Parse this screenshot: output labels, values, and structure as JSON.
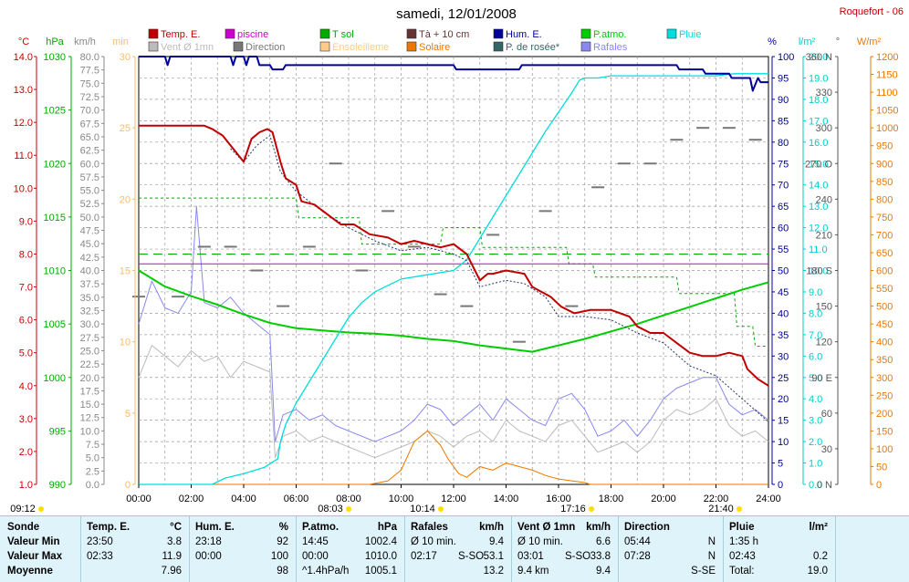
{
  "title": "samedi, 12/01/2008",
  "station": "Roquefort - 06",
  "colors": {
    "temp": "#c00000",
    "piscine": "#cc00cc",
    "tsol": "#00aa00",
    "t10": "#663333",
    "hum": "#000099",
    "patmo": "#00cc00",
    "pluie": "#00dddd",
    "vent": "#bbbbbb",
    "direction": "#777777",
    "ensoleillement": "#ffcc88",
    "solaire": "#ee7700",
    "rosee": "#336666",
    "rafales": "#8888ee",
    "grid": "#999999"
  },
  "legend": [
    {
      "label": "Temp. E.",
      "color": "#c00000"
    },
    {
      "label": "piscine",
      "color": "#cc00cc"
    },
    {
      "label": "T sol",
      "color": "#00aa00"
    },
    {
      "label": "Tà + 10 cm",
      "color": "#663333"
    },
    {
      "label": "Hum. E.",
      "color": "#000099"
    },
    {
      "label": "P.atmo.",
      "color": "#00cc00"
    },
    {
      "label": "Pluie",
      "color": "#00dddd"
    },
    {
      "label": "Vent Ø 1mn",
      "color": "#bbbbbb"
    },
    {
      "label": "Direction",
      "color": "#777777"
    },
    {
      "label": "Ensoleilleme",
      "color": "#ffcc88"
    },
    {
      "label": "Solaire",
      "color": "#ee7700"
    },
    {
      "label": "P. de rosée*",
      "color": "#336666"
    },
    {
      "label": "Rafales",
      "color": "#8888ee"
    }
  ],
  "axis_units": {
    "temp": "°C",
    "press": "hPa",
    "wind": "km/h",
    "min": "min",
    "pct": "%",
    "rain": "l/m²",
    "dir": "°",
    "solar": "W/m²"
  },
  "chart_data": {
    "type": "line",
    "title": "samedi, 12/01/2008",
    "x_range": [
      "00:00",
      "24:00"
    ],
    "x_ticks": [
      "00:00",
      "02:00",
      "04:00",
      "06:00",
      "08:00",
      "10:00",
      "12:00",
      "14:00",
      "16:00",
      "18:00",
      "20:00",
      "22:00",
      "24:00"
    ],
    "axes": {
      "temp_c": {
        "range": [
          1.0,
          14.0
        ],
        "ticks": [
          "1.0",
          "2.0",
          "3.0",
          "4.0",
          "5.0",
          "6.0",
          "7.0",
          "8.0",
          "9.0",
          "10.0",
          "11.0",
          "12.0",
          "13.0",
          "14.0"
        ]
      },
      "press_hpa": {
        "range": [
          990,
          1030
        ],
        "ticks": [
          "990",
          "995",
          "1000",
          "1005",
          "1010",
          "1015",
          "1020",
          "1025",
          "1030"
        ]
      },
      "wind_kmh": {
        "range": [
          0,
          80
        ],
        "ticks": [
          "0.0",
          "2.5",
          "5.0",
          "7.5",
          "10.0",
          "12.5",
          "15.0",
          "17.5",
          "20.0",
          "22.5",
          "25.0",
          "27.5",
          "30.0",
          "32.5",
          "35.0",
          "37.5",
          "40.0",
          "42.5",
          "45.0",
          "47.5",
          "50.0",
          "52.5",
          "55.0",
          "57.5",
          "60.0",
          "62.5",
          "65.0",
          "67.5",
          "70.0",
          "72.5",
          "75.0",
          "77.5",
          "80.0"
        ]
      },
      "sun_min": {
        "range": [
          0,
          30
        ],
        "ticks": [
          "0",
          "5",
          "10",
          "15",
          "20",
          "25",
          "30"
        ]
      },
      "hum_pct": {
        "range": [
          0,
          100
        ],
        "ticks": [
          "0",
          "5",
          "10",
          "15",
          "20",
          "25",
          "30",
          "35",
          "40",
          "45",
          "50",
          "55",
          "60",
          "65",
          "70",
          "75",
          "80",
          "85",
          "90",
          "95",
          "100"
        ]
      },
      "rain_lm2": {
        "range": [
          0,
          20
        ],
        "ticks": [
          "0.0",
          "1.0",
          "2.0",
          "3.0",
          "4.0",
          "5.0",
          "6.0",
          "7.0",
          "8.0",
          "9.0",
          "10.0",
          "11.0",
          "12.0",
          "13.0",
          "14.0",
          "15.0",
          "16.0",
          "17.0",
          "18.0",
          "19.0",
          "20.0"
        ]
      },
      "dir_deg": {
        "range": [
          0,
          360
        ],
        "ticks": [
          "0 N",
          "30",
          "60",
          "90 E",
          "120",
          "150",
          "180 S",
          "210",
          "240",
          "270 O",
          "300",
          "330",
          "360 N"
        ]
      },
      "solar_wm2": {
        "range": [
          0,
          1200
        ],
        "ticks": [
          "0",
          "50",
          "100",
          "150",
          "200",
          "250",
          "300",
          "350",
          "400",
          "450",
          "500",
          "550",
          "600",
          "650",
          "700",
          "750",
          "800",
          "850",
          "900",
          "950",
          "1000",
          "1050",
          "1100",
          "1150",
          "1200"
        ]
      }
    },
    "series": [
      {
        "name": "Temp. E.",
        "axis": "temp_c",
        "x": [
          0,
          1.5,
          2.5,
          2.8,
          3.2,
          3.7,
          4.0,
          4.3,
          4.6,
          4.9,
          5.1,
          5.4,
          5.6,
          6.0,
          6.2,
          6.7,
          7.2,
          7.7,
          8.2,
          8.8,
          9.5,
          10.0,
          10.5,
          11.0,
          11.5,
          12.0,
          12.5,
          13.0,
          13.3,
          13.5,
          14.0,
          14.7,
          15.0,
          15.7,
          16.1,
          16.6,
          17.2,
          18.0,
          18.7,
          19.0,
          19.5,
          20.0,
          20.5,
          21.0,
          21.5,
          22.0,
          22.5,
          23.0,
          23.2,
          23.6,
          24.0
        ],
        "y": [
          11.9,
          11.9,
          11.9,
          11.8,
          11.6,
          11.1,
          10.8,
          11.5,
          11.7,
          11.8,
          11.7,
          10.8,
          10.3,
          10.1,
          9.6,
          9.5,
          9.2,
          8.9,
          8.9,
          8.6,
          8.5,
          8.3,
          8.4,
          8.3,
          8.2,
          8.3,
          8.0,
          7.2,
          7.4,
          7.4,
          7.5,
          7.4,
          7.0,
          6.7,
          6.4,
          6.2,
          6.3,
          6.3,
          6.1,
          5.8,
          5.6,
          5.6,
          5.3,
          5.0,
          4.9,
          4.9,
          5.0,
          4.9,
          4.5,
          4.2,
          4.0
        ]
      },
      {
        "name": "P. de rosée*",
        "axis": "temp_c",
        "x": [
          3.5,
          4.0,
          4.5,
          5.0,
          5.4,
          6.0,
          7.0,
          8.0,
          9.0,
          10.0,
          11.0,
          12.0,
          12.5,
          13.0,
          14.0,
          14.7,
          15.5,
          16.0,
          17.0,
          18.0,
          19.0,
          20.0,
          21.0,
          22.0,
          23.0,
          24.0
        ],
        "y": [
          11.2,
          10.8,
          11.3,
          11.6,
          10.5,
          9.9,
          9.3,
          8.8,
          8.4,
          8.1,
          8.2,
          8.0,
          7.8,
          7.0,
          7.2,
          7.1,
          6.7,
          6.1,
          6.1,
          6.0,
          5.6,
          5.3,
          4.6,
          4.3,
          3.6,
          2.9
        ]
      },
      {
        "name": "piscine",
        "axis": "temp_c",
        "x": [
          0,
          24
        ],
        "y": [
          7.7,
          7.7
        ]
      },
      {
        "name": "T sol",
        "axis": "temp_c",
        "x": [
          0,
          6.0,
          6.1,
          8.4,
          8.5,
          11.5,
          11.6,
          13.0,
          13.1,
          16.3,
          16.4,
          17.3,
          17.4,
          20.5,
          20.6,
          22.7,
          22.8,
          23.4,
          23.5,
          24.0
        ],
        "y": [
          9.7,
          9.7,
          9.1,
          9.1,
          8.3,
          8.3,
          8.8,
          8.8,
          8.2,
          8.2,
          7.7,
          7.7,
          7.3,
          7.3,
          6.8,
          6.8,
          5.8,
          5.8,
          5.2,
          5.2
        ]
      },
      {
        "name": "Tà + 10 cm",
        "axis": "temp_c",
        "x": [
          0,
          24
        ],
        "y": [
          8.0,
          8.0
        ]
      },
      {
        "name": "P.atmo.",
        "axis": "press_hpa",
        "x": [
          0,
          1,
          2,
          3,
          4,
          5,
          6,
          7,
          8,
          9,
          10,
          11,
          12,
          13,
          14,
          15,
          16,
          17,
          18,
          19,
          20,
          21,
          22,
          23,
          24
        ],
        "y": [
          1010.0,
          1008.5,
          1007.6,
          1006.8,
          1005.9,
          1005.1,
          1004.6,
          1004.4,
          1004.2,
          1004.1,
          1003.9,
          1003.6,
          1003.4,
          1003.0,
          1002.7,
          1002.4,
          1003.0,
          1003.6,
          1004.3,
          1005.0,
          1005.8,
          1006.6,
          1007.4,
          1008.2,
          1008.9
        ]
      },
      {
        "name": "Hum. E.",
        "axis": "hum_pct",
        "x": [
          0,
          1.0,
          1.1,
          1.2,
          3.5,
          3.6,
          3.7,
          4.0,
          4.1,
          4.2,
          4.5,
          4.6,
          5.0,
          5.1,
          5.5,
          5.6,
          6.0,
          12.0,
          12.1,
          14.5,
          14.6,
          16.0,
          20.5,
          20.6,
          21.5,
          21.6,
          22.5,
          22.6,
          23.3,
          23.4,
          23.6,
          23.7,
          24.0
        ],
        "y": [
          100,
          100,
          98,
          100,
          100,
          98,
          100,
          100,
          98,
          100,
          100,
          98,
          98,
          97,
          97,
          98,
          98,
          98,
          97,
          97,
          98,
          98,
          98,
          97,
          97,
          96,
          96,
          95,
          95,
          92,
          95,
          94,
          94
        ]
      },
      {
        "name": "Pluie",
        "axis": "rain_lm2",
        "x": [
          0,
          2.8,
          3.3,
          4.0,
          4.8,
          5.3,
          5.4,
          5.6,
          6.0,
          6.5,
          7.0,
          7.5,
          8.0,
          8.5,
          9.0,
          9.5,
          10.0,
          11.0,
          12.0,
          12.5,
          13.0,
          13.5,
          14.0,
          14.5,
          15.0,
          15.5,
          16.0,
          16.5,
          16.8,
          17.0,
          17.3,
          17.5,
          18.0,
          20.0,
          22.0,
          22.7,
          23.2,
          24.0
        ],
        "y": [
          0,
          0,
          0.3,
          0.5,
          0.8,
          1.2,
          2.0,
          2.8,
          3.8,
          4.8,
          5.8,
          6.8,
          7.8,
          8.5,
          9.0,
          9.3,
          9.6,
          9.8,
          10.0,
          10.5,
          11.5,
          12.5,
          13.5,
          14.5,
          15.5,
          16.5,
          17.4,
          18.3,
          18.9,
          19.0,
          19.0,
          19.0,
          19.1,
          19.1,
          19.1,
          19.2,
          19.2,
          19.2
        ]
      },
      {
        "name": "Solaire",
        "axis": "solar_wm2",
        "x": [
          0,
          8.8,
          9.5,
          10.0,
          10.5,
          11.0,
          11.5,
          11.8,
          12.2,
          12.5,
          13.0,
          13.5,
          14.0,
          14.5,
          15.0,
          15.5,
          16.0,
          16.5,
          17.0,
          17.2,
          24.0
        ],
        "y": [
          0,
          0,
          10,
          40,
          120,
          150,
          110,
          70,
          30,
          20,
          50,
          40,
          60,
          50,
          40,
          25,
          15,
          10,
          5,
          0,
          0
        ]
      },
      {
        "name": "Vent Ø 1mn",
        "axis": "wind_kmh",
        "x": [
          0,
          0.5,
          1,
          1.5,
          2,
          2.5,
          3,
          3.5,
          4,
          4.5,
          5,
          5.2,
          5.5,
          6,
          6.5,
          7,
          7.5,
          8,
          8.5,
          9,
          9.5,
          10,
          10.5,
          11,
          11.5,
          12,
          12.5,
          13,
          13.5,
          14,
          14.5,
          15,
          15.5,
          16,
          16.5,
          17,
          17.5,
          18,
          18.5,
          19,
          19.5,
          20,
          20.5,
          21,
          21.5,
          22,
          22.5,
          23,
          23.5,
          24
        ],
        "y": [
          20,
          26,
          24,
          22,
          25,
          23,
          24,
          20,
          23,
          22,
          21,
          5,
          9,
          10,
          8,
          9,
          8,
          7,
          6,
          5,
          6,
          7,
          8,
          10,
          9,
          7,
          9,
          10,
          8,
          12,
          10,
          9,
          8,
          11,
          12,
          9,
          6,
          7,
          8,
          6,
          8,
          12,
          14,
          13,
          14,
          16,
          11,
          9,
          10,
          8
        ]
      },
      {
        "name": "Rafales",
        "axis": "wind_kmh",
        "x": [
          0,
          0.5,
          1,
          1.5,
          2,
          2.2,
          2.5,
          3,
          3.5,
          4,
          4.5,
          5,
          5.2,
          5.5,
          6,
          6.5,
          7,
          7.5,
          8,
          8.5,
          9,
          9.5,
          10,
          10.5,
          11,
          11.5,
          12,
          12.5,
          13,
          13.5,
          14,
          14.5,
          15,
          15.5,
          16,
          16.5,
          17,
          17.5,
          18,
          18.5,
          19,
          19.5,
          20,
          20.5,
          21,
          21.5,
          22,
          22.5,
          23,
          23.5,
          24
        ],
        "y": [
          30,
          38,
          33,
          32,
          36,
          52,
          34,
          33,
          35,
          32,
          30,
          28,
          8,
          13,
          14,
          12,
          13,
          11,
          10,
          9,
          8,
          9,
          10,
          12,
          15,
          14,
          11,
          13,
          15,
          12,
          16,
          14,
          12,
          11,
          16,
          17,
          14,
          9,
          10,
          12,
          9,
          12,
          16,
          18,
          19,
          20,
          20,
          15,
          13,
          14,
          12
        ]
      },
      {
        "name": "Direction",
        "axis": "dir_deg",
        "x": [
          0,
          1.5,
          2.5,
          3.5,
          4.5,
          5.5,
          6.5,
          7.5,
          8.5,
          9.5,
          10.5,
          11.5,
          12.5,
          13.5,
          14.5,
          15.5,
          16.5,
          17.5,
          18.5,
          19.5,
          20.5,
          21.5,
          22.5,
          23.5
        ],
        "y": [
          158,
          158,
          200,
          200,
          180,
          150,
          200,
          270,
          180,
          230,
          200,
          160,
          150,
          210,
          120,
          230,
          150,
          250,
          270,
          270,
          290,
          300,
          300,
          290
        ]
      }
    ]
  },
  "time_markers": [
    {
      "time": "09:12",
      "label": "09:12"
    },
    {
      "time": "08:03",
      "label": "08:03"
    },
    {
      "time": "10:14",
      "label": "10:14"
    },
    {
      "time": "17:16",
      "label": "17:16"
    },
    {
      "time": "21:40",
      "label": "21:40"
    }
  ],
  "stats": {
    "sonde": {
      "header": "Sonde",
      "rows": [
        "Valeur Min",
        "Valeur Max",
        "Moyenne"
      ]
    },
    "temp": {
      "header": "Temp. E.",
      "unit": "°C",
      "rows": [
        [
          "23:50",
          "3.8"
        ],
        [
          "02:33",
          "11.9"
        ],
        [
          "",
          "7.96"
        ]
      ]
    },
    "hum": {
      "header": "Hum. E.",
      "unit": "%",
      "rows": [
        [
          "23:18",
          "92"
        ],
        [
          "00:00",
          "100"
        ],
        [
          "",
          "98"
        ]
      ]
    },
    "patmo": {
      "header": "P.atmo.",
      "unit": "hPa",
      "rows": [
        [
          "14:45",
          "1002.4"
        ],
        [
          "00:00",
          "1010.0"
        ],
        [
          "^1.4hPa/h",
          "1005.1"
        ]
      ]
    },
    "rafales": {
      "header": "Rafales",
      "unit": "km/h",
      "rows": [
        [
          "Ø 10 min.",
          "",
          "9.4"
        ],
        [
          "02:17",
          "S-SO",
          "53.1"
        ],
        [
          "",
          "",
          "13.2"
        ]
      ]
    },
    "vent": {
      "header": "Vent Ø 1mn",
      "unit": "km/h",
      "rows": [
        [
          "Ø 10 min.",
          "",
          "6.6"
        ],
        [
          "03:01",
          "S-SO",
          "33.8"
        ],
        [
          "9.4 km",
          "",
          "9.4"
        ]
      ]
    },
    "direction": {
      "header": "Direction",
      "rows": [
        [
          "05:44",
          "N"
        ],
        [
          "07:28",
          "N"
        ],
        [
          "",
          "S-SE"
        ]
      ]
    },
    "pluie": {
      "header": "Pluie",
      "unit": "l/m²",
      "rows": [
        [
          "1:35 h",
          ""
        ],
        [
          "02:43",
          "0.2"
        ],
        [
          "Total:",
          "19.0"
        ]
      ]
    }
  }
}
